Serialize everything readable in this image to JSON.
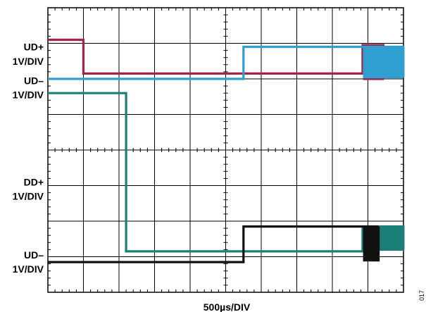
{
  "chart_data": {
    "type": "line",
    "xlabel": "500µs/DIV",
    "x_divisions": 10,
    "y_divisions": 8,
    "grid": true,
    "figure_number": "017",
    "channel_labels": [
      {
        "text": "UD+",
        "ydiv": 6.9
      },
      {
        "text": "1V/DIV",
        "ydiv": 6.5
      },
      {
        "text": "UD–",
        "ydiv": 5.95
      },
      {
        "text": "1V/DIV",
        "ydiv": 5.55
      },
      {
        "text": "DD+",
        "ydiv": 3.1
      },
      {
        "text": "1V/DIV",
        "ydiv": 2.7
      },
      {
        "text": "UD–",
        "ydiv": 1.05
      },
      {
        "text": "1V/DIV",
        "ydiv": 0.65
      }
    ],
    "series": [
      {
        "color": "#a3244a",
        "points": [
          [
            0,
            7.1
          ],
          [
            1.0,
            7.1
          ],
          [
            1.0,
            6.15
          ],
          [
            8.85,
            6.15
          ]
        ],
        "burst": {
          "x0": 8.85,
          "x1": 9.45,
          "hi": 6.95,
          "lo": 6.0,
          "period": 0.09
        }
      },
      {
        "color": "#2e9fd0",
        "points": [
          [
            0,
            6.0
          ],
          [
            5.5,
            6.0
          ],
          [
            5.5,
            6.9
          ],
          [
            8.85,
            6.9
          ]
        ],
        "burst": {
          "x0": 8.85,
          "x1": 10.0,
          "hi": 6.9,
          "lo": 6.05,
          "period": 0.085
        }
      },
      {
        "color": "#1c8079",
        "points": [
          [
            0,
            5.6
          ],
          [
            2.2,
            5.6
          ],
          [
            2.2,
            1.15
          ],
          [
            8.85,
            1.15
          ]
        ],
        "burst": {
          "x0": 8.85,
          "x1": 10.0,
          "hi": 1.85,
          "lo": 1.2,
          "period": 0.085
        }
      },
      {
        "color": "#111111",
        "points": [
          [
            0,
            0.85
          ],
          [
            5.5,
            0.85
          ],
          [
            5.5,
            1.85
          ],
          [
            8.85,
            1.85
          ]
        ],
        "burst": {
          "x0": 8.85,
          "x1": 9.3,
          "hi": 1.85,
          "lo": 0.9,
          "period": 0.09
        }
      }
    ]
  }
}
